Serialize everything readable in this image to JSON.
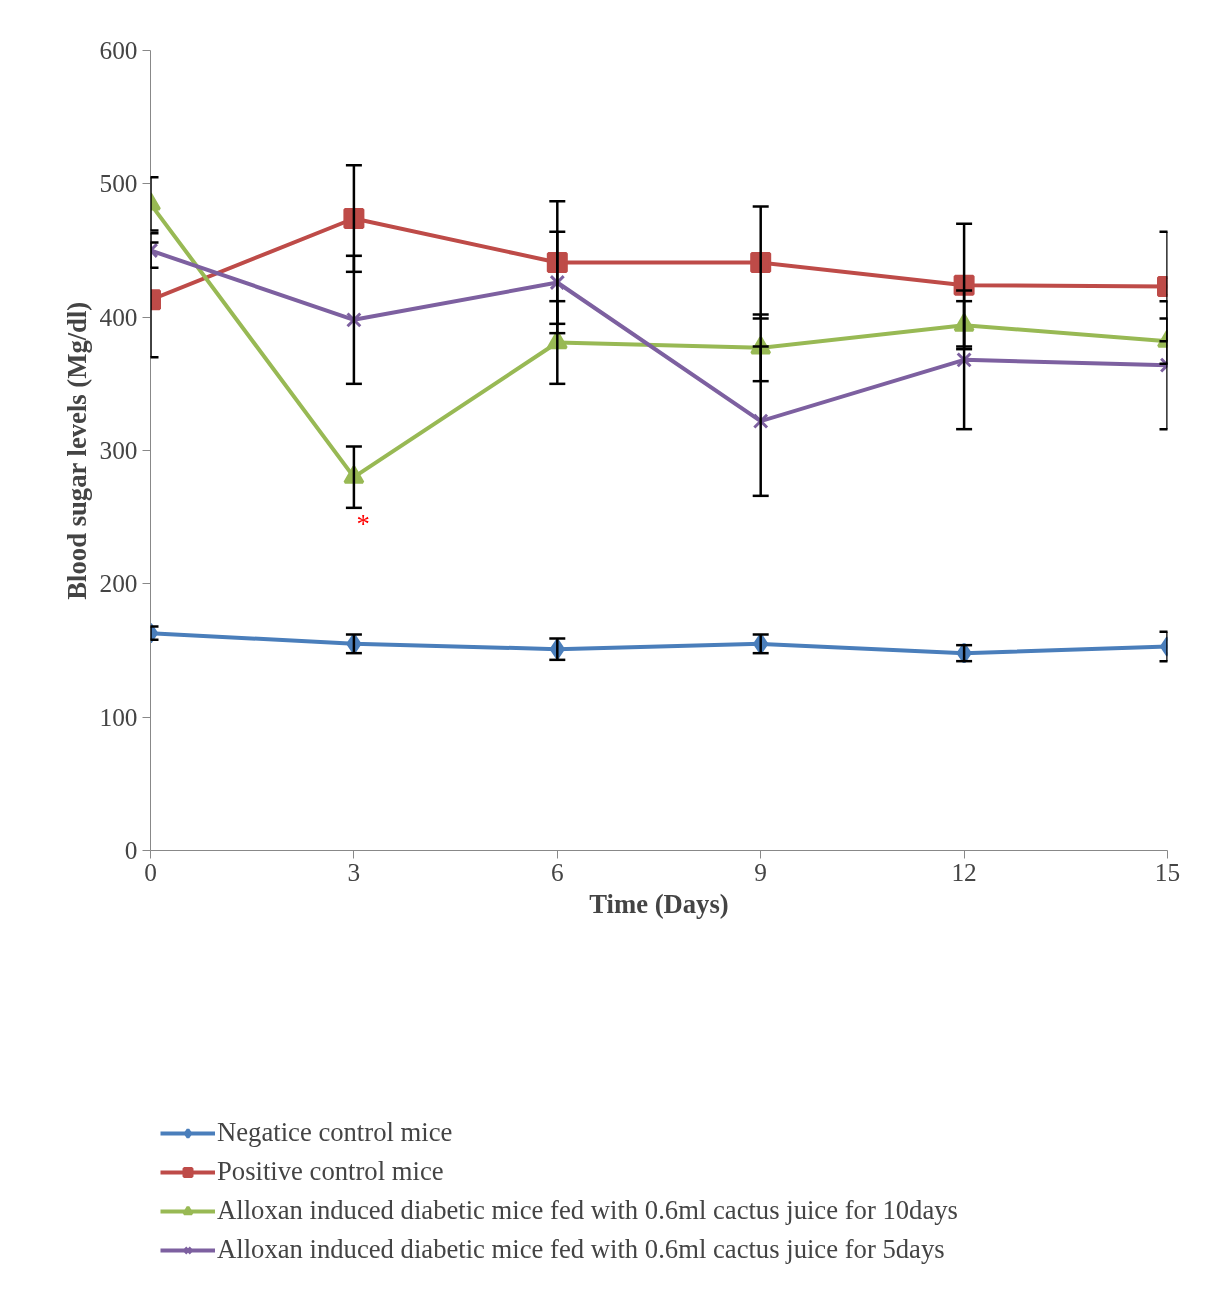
{
  "chart_data": {
    "type": "line",
    "xlabel": "Time (Days)",
    "ylabel": "Blood sugar levels (Mg/dl)",
    "x": [
      0,
      3,
      6,
      9,
      12,
      15
    ],
    "series": [
      {
        "name": "Negatice control mice",
        "color": "#4a7ebb",
        "marker": "diamond",
        "values": [
          163,
          155,
          151,
          155,
          148,
          153
        ],
        "errors": [
          5,
          7,
          8,
          7,
          6,
          11
        ]
      },
      {
        "name": "Positive control mice",
        "color": "#be4b48",
        "marker": "square",
        "values": [
          413,
          474,
          441,
          441,
          424,
          423
        ],
        "errors": [
          43,
          40,
          46,
          42,
          46,
          41
        ]
      },
      {
        "name": "Alloxan induced diabetic mice fed with 0.6ml cactus juice for 10days",
        "color": "#98b954",
        "marker": "triangle",
        "values": [
          485,
          280,
          381,
          377,
          394,
          382
        ],
        "errors": [
          20,
          23,
          31,
          25,
          18,
          17
        ]
      },
      {
        "name": "Alloxan induced diabetic mice fed with 0.6ml cactus juice for 5days",
        "color": "#7d60a0",
        "marker": "cross",
        "values": [
          450,
          398,
          426,
          322,
          368,
          364
        ],
        "errors": [
          13,
          48,
          38,
          56,
          52,
          48
        ]
      }
    ],
    "annotations": [
      "*"
    ],
    "xlim": [
      0,
      15
    ],
    "ylim": [
      0,
      600
    ],
    "xticks": [
      0,
      3,
      6,
      9,
      12,
      15
    ],
    "yticks": [
      0,
      100,
      200,
      300,
      400,
      500,
      600
    ],
    "grid": false,
    "legend": "bottom"
  }
}
